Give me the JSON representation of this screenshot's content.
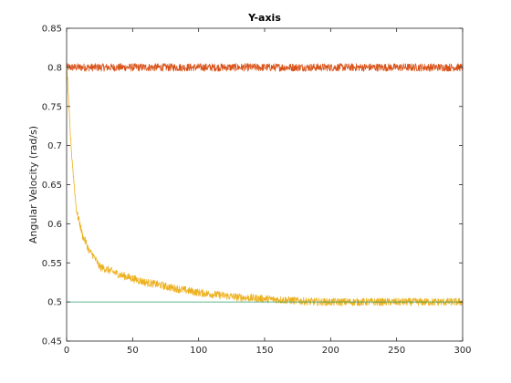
{
  "chart_data": {
    "type": "line",
    "title": "Y-axis",
    "xlabel": "",
    "ylabel": "Angular Velocity (rad/s)",
    "xlim": [
      0,
      300
    ],
    "ylim": [
      0.45,
      0.85
    ],
    "xticks": [
      0,
      50,
      100,
      150,
      200,
      250,
      300
    ],
    "yticks": [
      0.45,
      0.5,
      0.55,
      0.6,
      0.65,
      0.7,
      0.75,
      0.8,
      0.85
    ],
    "grid": false,
    "legend": "none",
    "series": [
      {
        "color": "#D95319",
        "x": [
          0,
          300
        ],
        "y": [
          0.8,
          0.8
        ],
        "noise": 0.005
      },
      {
        "color": "#EDB120",
        "x": [
          0,
          1,
          2,
          3,
          4,
          5,
          6,
          7,
          8,
          9,
          10,
          12,
          15,
          17,
          20,
          25,
          30,
          40,
          50,
          60,
          70,
          80,
          90,
          100,
          110,
          120,
          130,
          140,
          150,
          160,
          170,
          180,
          190,
          200,
          220,
          240,
          260,
          280,
          300
        ],
        "y": [
          0.8,
          0.775,
          0.74,
          0.71,
          0.685,
          0.665,
          0.645,
          0.625,
          0.612,
          0.607,
          0.6,
          0.585,
          0.575,
          0.565,
          0.56,
          0.545,
          0.542,
          0.535,
          0.53,
          0.525,
          0.522,
          0.518,
          0.515,
          0.512,
          0.51,
          0.508,
          0.506,
          0.505,
          0.504,
          0.503,
          0.502,
          0.501,
          0.5,
          0.5,
          0.5,
          0.5,
          0.5,
          0.5,
          0.5
        ],
        "noise": 0.005
      },
      {
        "color": "#2E9B6C",
        "x": [
          0,
          300
        ],
        "y": [
          0.5,
          0.5
        ],
        "noise": 0
      }
    ]
  }
}
